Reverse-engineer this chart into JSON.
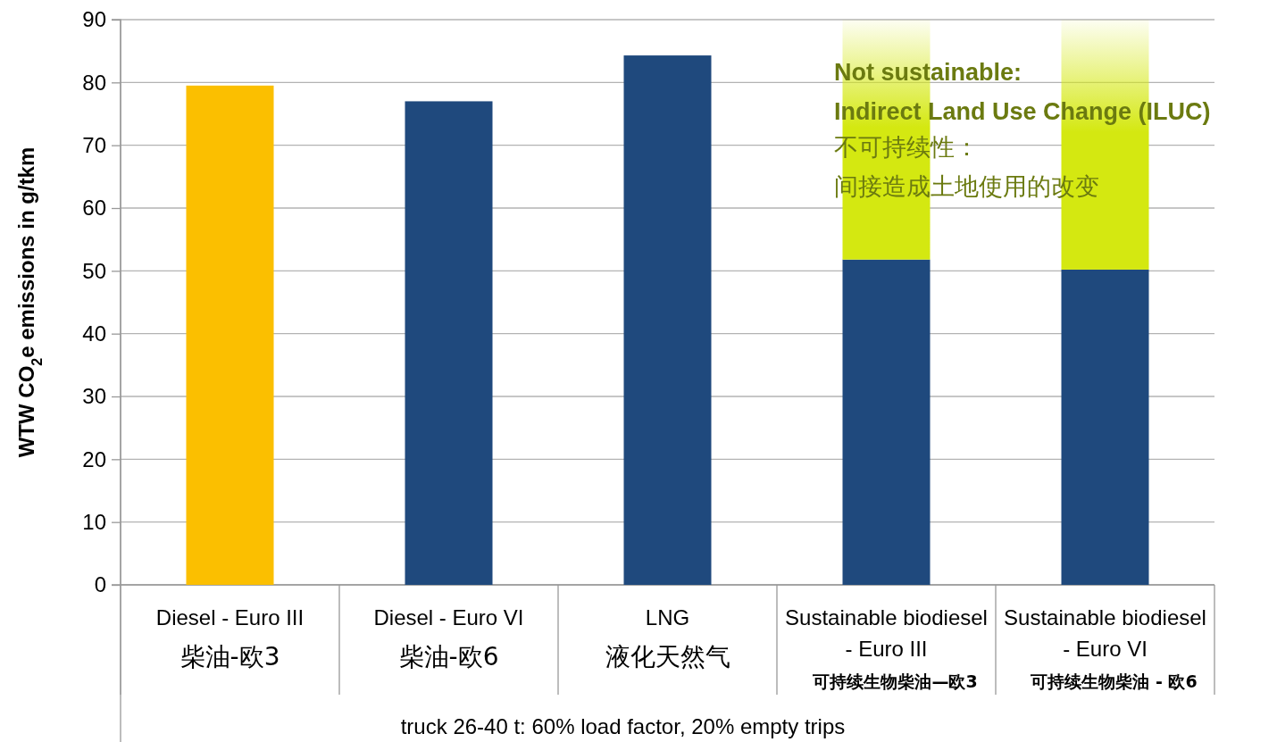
{
  "chart_data": {
    "type": "bar",
    "stacked": true,
    "categories": [
      "Diesel - Euro III\n柴油-欧3",
      "Diesel - Euro VI\n柴油-欧6",
      "LNG\n液化天然气",
      "Sustainable biodiesel - Euro III\n可持续生物柴油—欧3",
      "Sustainable biodiesel - Euro VI\n可持续生物柴油 - 欧6"
    ],
    "series": [
      {
        "colors": [
          "#fbbf00",
          "#1f497d",
          "#1f497d",
          "#1f497d",
          "#1f497d"
        ],
        "values": [
          79.5,
          77,
          84.3,
          51.8,
          50.2
        ]
      },
      {
        "color": "#d4e811",
        "values": [
          null,
          null,
          null,
          38.2,
          39.8
        ]
      }
    ],
    "ylabel": "WTW CO$_{2}$e emissions in g/tkm",
    "xlabel": "truck 26-40 t: 60% load factor, 20% empty trips",
    "ylim": [
      0,
      90
    ],
    "yticks": [
      0,
      10,
      20,
      30,
      40,
      50,
      60,
      70,
      80,
      90
    ],
    "grid": "y",
    "annotations": [
      "Not sustainable:",
      "Indirect Land Use Change (ILUC)",
      "不可持续性：",
      "间接造成土地使用的改变"
    ]
  }
}
